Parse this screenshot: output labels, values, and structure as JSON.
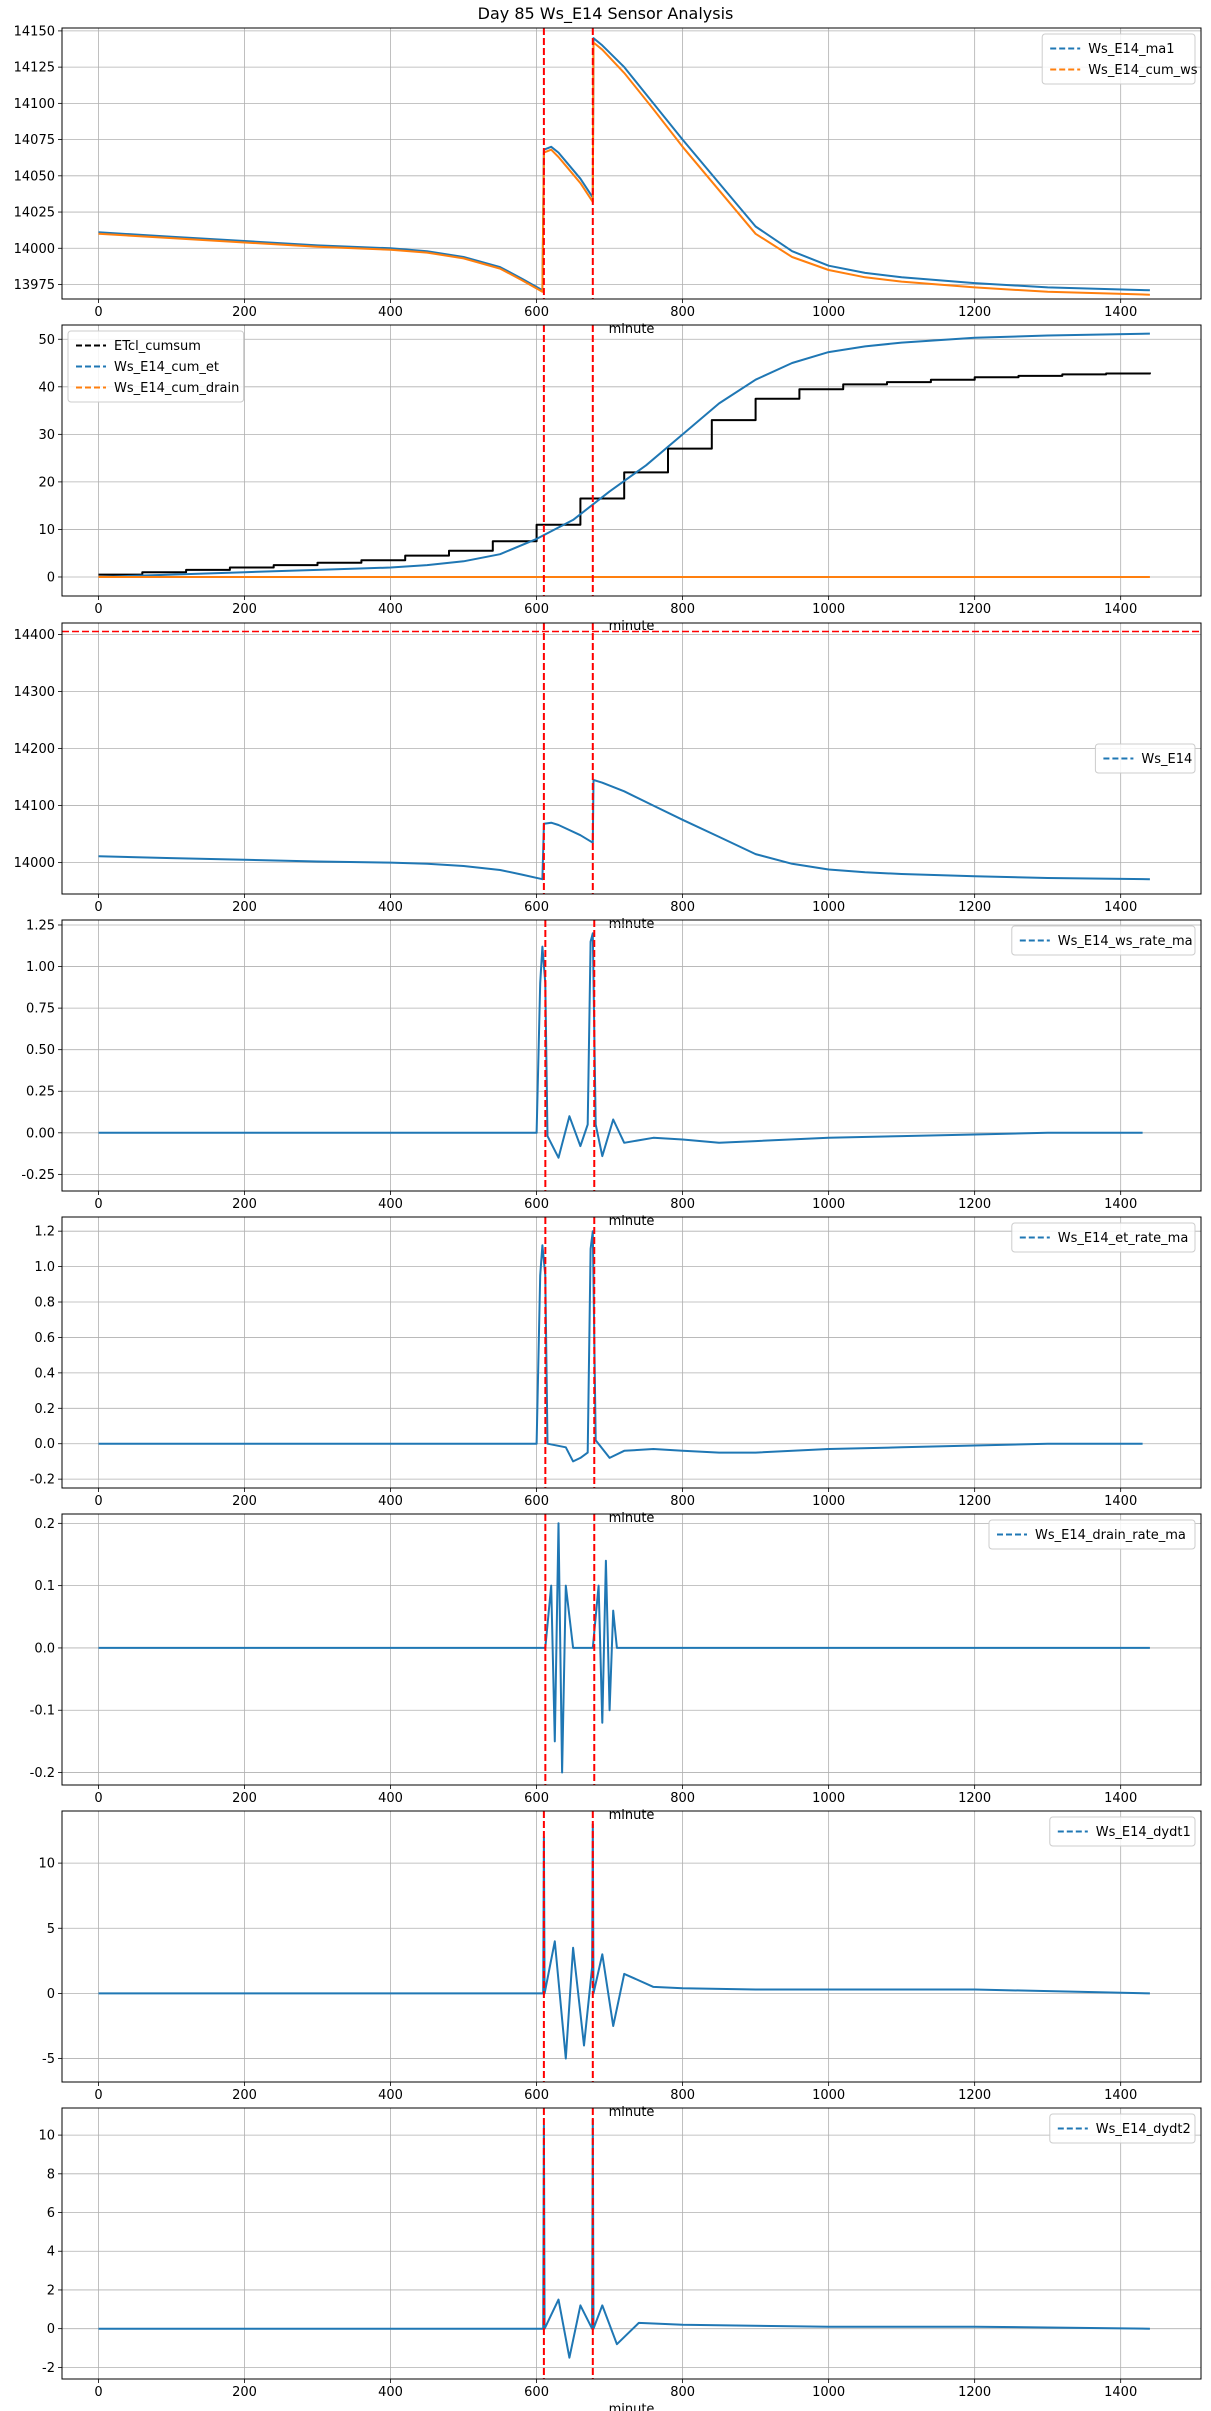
{
  "title": "Day 85 Ws_E14 Sensor Analysis",
  "chart_data": [
    {
      "type": "line",
      "xlabel": "minute",
      "xlim": [
        -50,
        1510
      ],
      "xticks": [
        0,
        200,
        400,
        600,
        800,
        1000,
        1200,
        1400
      ],
      "ylim": [
        13965,
        14152
      ],
      "yticks": [
        13975,
        14000,
        14025,
        14050,
        14075,
        14100,
        14125,
        14150
      ],
      "vlines": [
        610,
        677
      ],
      "hlines": [],
      "legend": "top-right",
      "series": [
        {
          "name": "Ws_E14_ma1",
          "color": "#1f77b4",
          "style": "dashed",
          "x": [
            0,
            100,
            200,
            300,
            400,
            450,
            500,
            550,
            580,
            608,
            610,
            620,
            630,
            640,
            660,
            677,
            678,
            690,
            720,
            760,
            800,
            850,
            900,
            950,
            1000,
            1050,
            1100,
            1200,
            1300,
            1440
          ],
          "y": [
            14011,
            14008,
            14005,
            14002,
            14000,
            13998,
            13994,
            13987,
            13979,
            13971,
            14068,
            14070,
            14066,
            14060,
            14048,
            14035,
            14145,
            14140,
            14125,
            14100,
            14075,
            14045,
            14015,
            13998,
            13988,
            13983,
            13980,
            13976,
            13973,
            13971
          ]
        },
        {
          "name": "Ws_E14_cum_ws",
          "color": "#ff7f0e",
          "style": "dashed",
          "x": [
            0,
            100,
            200,
            300,
            400,
            450,
            500,
            550,
            580,
            608,
            610,
            620,
            630,
            640,
            660,
            677,
            678,
            690,
            720,
            760,
            800,
            850,
            900,
            950,
            1000,
            1050,
            1100,
            1200,
            1300,
            1440
          ],
          "y": [
            14010,
            14007,
            14004,
            14001,
            13999,
            13997,
            13993,
            13986,
            13978,
            13970,
            14066,
            14068,
            14063,
            14057,
            14045,
            14032,
            14142,
            14137,
            14121,
            14096,
            14070,
            14040,
            14010,
            13994,
            13985,
            13980,
            13977,
            13973,
            13970,
            13968
          ]
        }
      ]
    },
    {
      "type": "line",
      "xlabel": "minute",
      "xlim": [
        -50,
        1510
      ],
      "xticks": [
        0,
        200,
        400,
        600,
        800,
        1000,
        1200,
        1400
      ],
      "ylim": [
        -4,
        53
      ],
      "yticks": [
        0,
        10,
        20,
        30,
        40,
        50
      ],
      "vlines": [
        610,
        677
      ],
      "hlines": [],
      "legend": "top-left",
      "series": [
        {
          "name": "ETcl_cumsum",
          "color": "#000000",
          "style": "dashed",
          "step": true,
          "x": [
            0,
            60,
            120,
            180,
            240,
            300,
            360,
            420,
            480,
            540,
            600,
            660,
            720,
            780,
            840,
            900,
            960,
            1020,
            1080,
            1140,
            1200,
            1260,
            1320,
            1380,
            1440
          ],
          "y": [
            0.5,
            1.0,
            1.5,
            2.0,
            2.5,
            3.0,
            3.5,
            4.5,
            5.5,
            7.5,
            11.0,
            16.5,
            22.0,
            27.0,
            33.0,
            37.5,
            39.5,
            40.5,
            41.0,
            41.5,
            42.0,
            42.3,
            42.6,
            42.8,
            43.0
          ]
        },
        {
          "name": "Ws_E14_cum_et",
          "color": "#1f77b4",
          "style": "dashed",
          "x": [
            0,
            100,
            200,
            300,
            400,
            450,
            500,
            550,
            600,
            650,
            700,
            750,
            800,
            850,
            900,
            950,
            1000,
            1050,
            1100,
            1200,
            1300,
            1440
          ],
          "y": [
            0,
            0.5,
            1.0,
            1.5,
            2.0,
            2.5,
            3.3,
            4.8,
            8.0,
            12.0,
            18.0,
            23.5,
            30.0,
            36.5,
            41.5,
            45.0,
            47.3,
            48.5,
            49.3,
            50.3,
            50.8,
            51.2
          ]
        },
        {
          "name": "Ws_E14_cum_drain",
          "color": "#ff7f0e",
          "style": "dashed",
          "x": [
            0,
            600,
            610,
            640,
            680,
            720,
            1440
          ],
          "y": [
            0,
            0,
            0,
            0,
            0,
            0,
            0
          ]
        }
      ]
    },
    {
      "type": "line",
      "xlabel": "minute",
      "xlim": [
        -50,
        1510
      ],
      "xticks": [
        0,
        200,
        400,
        600,
        800,
        1000,
        1200,
        1400
      ],
      "ylim": [
        13945,
        14420
      ],
      "yticks": [
        14000,
        14100,
        14200,
        14300,
        14400
      ],
      "vlines": [
        610,
        677
      ],
      "hlines": [
        14405
      ],
      "legend": "center-right",
      "series": [
        {
          "name": "Ws_E14",
          "color": "#1f77b4",
          "style": "dashed",
          "x": [
            0,
            100,
            200,
            300,
            400,
            450,
            500,
            550,
            580,
            608,
            610,
            620,
            630,
            640,
            660,
            677,
            678,
            690,
            720,
            760,
            800,
            850,
            900,
            950,
            1000,
            1050,
            1100,
            1200,
            1300,
            1440
          ],
          "y": [
            14011,
            14008,
            14005,
            14002,
            14000,
            13998,
            13994,
            13987,
            13979,
            13971,
            14068,
            14070,
            14066,
            14060,
            14048,
            14035,
            14145,
            14140,
            14125,
            14100,
            14075,
            14045,
            14015,
            13998,
            13988,
            13983,
            13980,
            13976,
            13973,
            13971
          ]
        }
      ]
    },
    {
      "type": "line",
      "xlabel": "minute",
      "xlim": [
        -50,
        1510
      ],
      "xticks": [
        0,
        200,
        400,
        600,
        800,
        1000,
        1200,
        1400
      ],
      "ylim": [
        -0.35,
        1.28
      ],
      "yticks": [
        -0.25,
        0.0,
        0.25,
        0.5,
        0.75,
        1.0,
        1.25
      ],
      "yticklabels": [
        "-0.25",
        "0.00",
        "0.25",
        "0.50",
        "0.75",
        "1.00",
        "1.25"
      ],
      "vlines": [
        612,
        679
      ],
      "hlines": [],
      "legend": "top-right",
      "series": [
        {
          "name": "Ws_E14_ws_rate_ma",
          "color": "#1f77b4",
          "style": "dashed",
          "x": [
            0,
            200,
            400,
            550,
            600,
            605,
            608,
            612,
            615,
            630,
            645,
            660,
            670,
            674,
            677,
            681,
            690,
            705,
            720,
            760,
            800,
            850,
            900,
            1000,
            1100,
            1200,
            1300,
            1430
          ],
          "y": [
            0,
            0,
            0,
            0,
            0,
            0.9,
            1.12,
            0.9,
            -0.02,
            -0.15,
            0.1,
            -0.08,
            0.05,
            1.15,
            1.2,
            0.05,
            -0.14,
            0.08,
            -0.06,
            -0.03,
            -0.04,
            -0.06,
            -0.05,
            -0.03,
            -0.02,
            -0.01,
            0,
            0
          ]
        }
      ]
    },
    {
      "type": "line",
      "xlabel": "minute",
      "xlim": [
        -50,
        1510
      ],
      "xticks": [
        0,
        200,
        400,
        600,
        800,
        1000,
        1200,
        1400
      ],
      "ylim": [
        -0.25,
        1.28
      ],
      "yticks": [
        -0.2,
        0.0,
        0.2,
        0.4,
        0.6,
        0.8,
        1.0,
        1.2
      ],
      "yticklabels": [
        "-0.2",
        "0.0",
        "0.2",
        "0.4",
        "0.6",
        "0.8",
        "1.0",
        "1.2"
      ],
      "vlines": [
        612,
        679
      ],
      "hlines": [],
      "legend": "top-right",
      "series": [
        {
          "name": "Ws_E14_et_rate_ma",
          "color": "#1f77b4",
          "style": "dashed",
          "x": [
            0,
            200,
            400,
            550,
            600,
            605,
            608,
            612,
            615,
            640,
            650,
            660,
            670,
            674,
            677,
            681,
            700,
            720,
            760,
            800,
            850,
            900,
            1000,
            1100,
            1200,
            1300,
            1430
          ],
          "y": [
            0,
            0,
            0,
            0,
            0,
            0.95,
            1.12,
            0.95,
            0,
            -0.02,
            -0.1,
            -0.08,
            -0.05,
            1.1,
            1.2,
            0.02,
            -0.08,
            -0.04,
            -0.03,
            -0.04,
            -0.05,
            -0.05,
            -0.03,
            -0.02,
            -0.01,
            0,
            0
          ]
        }
      ]
    },
    {
      "type": "line",
      "xlabel": "minute",
      "xlim": [
        -50,
        1510
      ],
      "xticks": [
        0,
        200,
        400,
        600,
        800,
        1000,
        1200,
        1400
      ],
      "ylim": [
        -0.22,
        0.215
      ],
      "yticks": [
        -0.2,
        -0.1,
        0.0,
        0.1,
        0.2
      ],
      "yticklabels": [
        "-0.2",
        "-0.1",
        "0.0",
        "0.1",
        "0.2"
      ],
      "vlines": [
        612,
        679
      ],
      "hlines": [],
      "legend": "top-right",
      "series": [
        {
          "name": "Ws_E14_drain_rate_ma",
          "color": "#1f77b4",
          "style": "dashed",
          "x": [
            0,
            300,
            600,
            612,
            620,
            625,
            630,
            635,
            640,
            650,
            660,
            677,
            685,
            690,
            695,
            700,
            705,
            710,
            720,
            900,
            1200,
            1440
          ],
          "y": [
            0,
            0,
            0,
            0,
            0.1,
            -0.15,
            0.2,
            -0.2,
            0.1,
            0,
            0,
            0,
            0.1,
            -0.12,
            0.14,
            -0.1,
            0.06,
            0,
            0,
            0,
            0,
            0
          ]
        }
      ]
    },
    {
      "type": "line",
      "xlabel": "minute",
      "xlim": [
        -50,
        1510
      ],
      "xticks": [
        0,
        200,
        400,
        600,
        800,
        1000,
        1200,
        1400
      ],
      "ylim": [
        -6.8,
        14
      ],
      "yticks": [
        -5,
        0,
        5,
        10
      ],
      "vlines": [
        610,
        677
      ],
      "hlines": [],
      "legend": "top-right",
      "series": [
        {
          "name": "Ws_E14_dydt1",
          "color": "#1f77b4",
          "style": "dashed",
          "x": [
            0,
            100,
            200,
            300,
            400,
            500,
            580,
            600,
            609,
            610,
            611,
            625,
            640,
            650,
            665,
            676,
            677,
            678,
            690,
            705,
            720,
            760,
            800,
            900,
            1000,
            1200,
            1440
          ],
          "y": [
            0,
            0,
            0,
            0,
            0,
            0,
            0,
            0,
            0,
            12,
            0,
            4,
            -5,
            3.5,
            -4,
            2,
            13,
            0,
            3,
            -2.5,
            1.5,
            0.5,
            0.4,
            0.3,
            0.3,
            0.3,
            0
          ]
        }
      ]
    },
    {
      "type": "line",
      "xlabel": "minute",
      "xlim": [
        -50,
        1510
      ],
      "xticks": [
        0,
        200,
        400,
        600,
        800,
        1000,
        1200,
        1400
      ],
      "ylim": [
        -2.6,
        11.4
      ],
      "yticks": [
        -2,
        0,
        2,
        4,
        6,
        8,
        10
      ],
      "vlines": [
        610,
        677
      ],
      "hlines": [],
      "legend": "top-right",
      "series": [
        {
          "name": "Ws_E14_dydt2",
          "color": "#1f77b4",
          "style": "dashed",
          "x": [
            0,
            100,
            200,
            300,
            400,
            500,
            600,
            609,
            610,
            611,
            630,
            645,
            660,
            676,
            677,
            678,
            690,
            710,
            740,
            800,
            1000,
            1200,
            1440
          ],
          "y": [
            0,
            0,
            0,
            0,
            0,
            0,
            0,
            0,
            10.5,
            0,
            1.5,
            -1.5,
            1.2,
            0,
            10.8,
            0,
            1.2,
            -0.8,
            0.3,
            0.2,
            0.1,
            0.1,
            0
          ]
        }
      ]
    }
  ]
}
